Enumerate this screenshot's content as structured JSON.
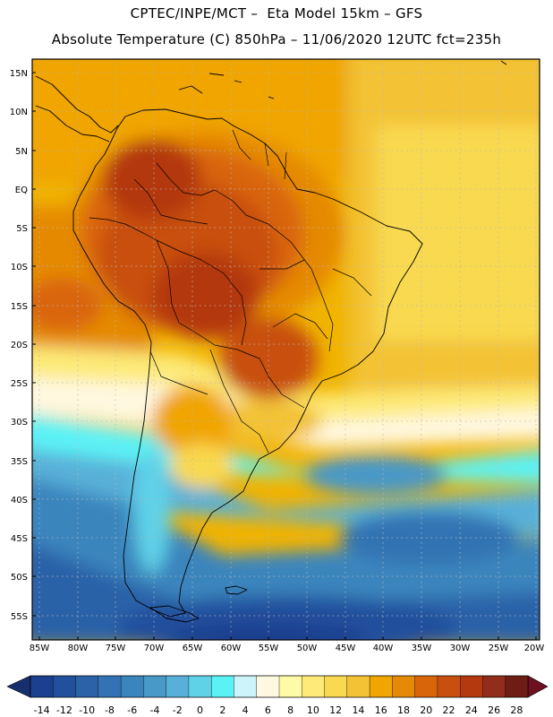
{
  "header": {
    "line1": "CPTEC/INPE/MCT –  Eta Model 15km – GFS",
    "line2": "Absolute Temperature (C) 850hPa – 11/06/2020 12UTC fct=235h"
  },
  "map": {
    "lat_labels": [
      "15N",
      "10N",
      "5N",
      "EQ",
      "5S",
      "10S",
      "15S",
      "20S",
      "25S",
      "30S",
      "35S",
      "40S",
      "45S",
      "50S",
      "55S"
    ],
    "lon_labels": [
      "85W",
      "80W",
      "75W",
      "70W",
      "65W",
      "60W",
      "55W",
      "50W",
      "45W",
      "40W",
      "35W",
      "30W",
      "25W",
      "20W"
    ]
  },
  "colorbar": {
    "labels": [
      "-14",
      "-12",
      "-10",
      "-8",
      "-6",
      "-4",
      "-2",
      "0",
      "2",
      "4",
      "6",
      "8",
      "10",
      "12",
      "14",
      "16",
      "18",
      "20",
      "22",
      "24",
      "26",
      "28"
    ],
    "colors": [
      "#1c3f8f",
      "#23509c",
      "#2b62a8",
      "#3373b3",
      "#3b85bd",
      "#4898c8",
      "#58b0d8",
      "#5fd2e8",
      "#5bf2f6",
      "#ccf4fa",
      "#fff8e0",
      "#fffaa6",
      "#fdea78",
      "#f9d950",
      "#f3c235",
      "#f0a500",
      "#e58a06",
      "#d9650b",
      "#c8500f",
      "#b4390f",
      "#922c1b",
      "#6d1d14"
    ]
  }
}
